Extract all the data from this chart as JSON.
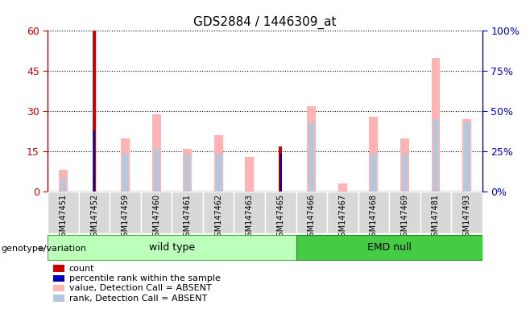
{
  "title": "GDS2884 / 1446309_at",
  "samples": [
    "GSM147451",
    "GSM147452",
    "GSM147459",
    "GSM147460",
    "GSM147461",
    "GSM147462",
    "GSM147463",
    "GSM147465",
    "GSM147466",
    "GSM147467",
    "GSM147468",
    "GSM147469",
    "GSM147481",
    "GSM147493"
  ],
  "count": [
    0,
    60,
    0,
    0,
    0,
    0,
    0,
    17,
    0,
    0,
    0,
    0,
    0,
    0
  ],
  "percentile_rank": [
    0,
    23,
    0,
    0,
    0,
    0,
    0,
    14,
    0,
    0,
    0,
    0,
    0,
    0
  ],
  "value_absent": [
    8,
    0,
    20,
    29,
    16,
    21,
    13,
    0,
    32,
    3,
    28,
    20,
    50,
    27
  ],
  "rank_absent": [
    5,
    0,
    14,
    16,
    14,
    14,
    0,
    0,
    26,
    0,
    14,
    14,
    27,
    26
  ],
  "wild_type_indices": [
    0,
    1,
    2,
    3,
    4,
    5,
    6,
    7
  ],
  "emd_null_indices": [
    8,
    9,
    10,
    11,
    12,
    13
  ],
  "ylim_left": [
    0,
    60
  ],
  "ylim_right": [
    0,
    100
  ],
  "yticks_left": [
    0,
    15,
    30,
    45,
    60
  ],
  "yticks_right": [
    0,
    25,
    50,
    75,
    100
  ],
  "ytick_labels_left": [
    "0",
    "15",
    "30",
    "45",
    "60"
  ],
  "ytick_labels_right": [
    "0%",
    "25%",
    "50%",
    "75%",
    "100%"
  ],
  "color_count": "#cc0000",
  "color_percentile": "#0000bb",
  "color_value_absent": "#ffb3b3",
  "color_rank_absent": "#b3c8dd",
  "color_wt_group": "#bbffbb",
  "color_emd_group": "#44cc44",
  "color_axis_left": "#cc0000",
  "color_axis_right": "#0000bb",
  "color_plot_bg": "#ffffff",
  "color_xtick_bg": "#d8d8d8",
  "legend_items": [
    {
      "label": "count",
      "color": "#cc0000"
    },
    {
      "label": "percentile rank within the sample",
      "color": "#0000bb"
    },
    {
      "label": "value, Detection Call = ABSENT",
      "color": "#ffb3b3"
    },
    {
      "label": "rank, Detection Call = ABSENT",
      "color": "#b3c8dd"
    }
  ]
}
